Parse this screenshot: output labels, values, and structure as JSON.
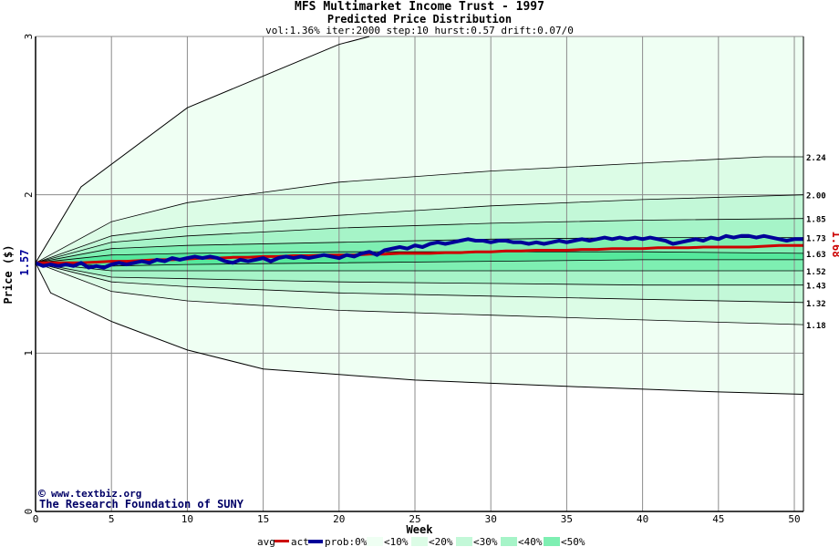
{
  "chart_data": {
    "type": "area",
    "title": "MFS Multimarket Income Trust - 1997",
    "subtitle": "Predicted Price Distribution",
    "params": "vol:1.36% iter:2000 step:10 hurst:0.57 drift:0.07/0",
    "xlabel": "Week",
    "ylabel": "Price ($)",
    "xlim": [
      0,
      50.6
    ],
    "ylim": [
      0,
      3
    ],
    "x_ticks": [
      "0",
      "5",
      "10",
      "15",
      "20",
      "25",
      "30",
      "35",
      "40",
      "45",
      "50"
    ],
    "y_ticks": [
      "0",
      "1",
      "2",
      "3"
    ],
    "start_price_label": "1.57",
    "end_price_label": "1.68",
    "band_end_labels": [
      "2.24",
      "2.00",
      "1.85",
      "1.73",
      "1.63",
      "1.52",
      "1.43",
      "1.32",
      "1.18"
    ],
    "credit_line1": "www.textbiz.org",
    "credit_line2": "The Research Foundation of SUNY",
    "legend": {
      "avg": "avg",
      "act": "act",
      "prob": "prob:0%<",
      "b10": "<10%",
      "b20": "<20%",
      "b30": "<30%",
      "b40": "<40%",
      "b50": "<50%"
    },
    "band_colors": [
      "#effff3",
      "#dcfce6",
      "#c3f8d8",
      "#a6f4c8",
      "#7eefb2",
      "#55e89c"
    ],
    "avg_color": "#cc0000",
    "act_color": "#000099",
    "envelope_upper": [
      [
        0,
        1.57
      ],
      [
        3,
        2.05
      ],
      [
        10,
        2.55
      ],
      [
        15,
        2.75
      ],
      [
        20,
        2.95
      ],
      [
        22,
        3.0
      ]
    ],
    "envelope_lower": [
      [
        0,
        1.57
      ],
      [
        1,
        1.38
      ],
      [
        5,
        1.2
      ],
      [
        10,
        1.02
      ],
      [
        15,
        0.9
      ],
      [
        25,
        0.83
      ],
      [
        35,
        0.79
      ],
      [
        45,
        0.755
      ],
      [
        50.6,
        0.74
      ]
    ],
    "bands": [
      {
        "upper": [
          [
            0,
            1.57
          ],
          [
            5,
            1.83
          ],
          [
            10,
            1.95
          ],
          [
            20,
            2.08
          ],
          [
            30,
            2.15
          ],
          [
            40,
            2.2
          ],
          [
            48,
            2.24
          ],
          [
            50.6,
            2.24
          ]
        ],
        "lower": [
          [
            0,
            1.57
          ],
          [
            5,
            1.39
          ],
          [
            10,
            1.33
          ],
          [
            20,
            1.27
          ],
          [
            30,
            1.24
          ],
          [
            40,
            1.21
          ],
          [
            50.6,
            1.18
          ]
        ]
      },
      {
        "upper": [
          [
            0,
            1.57
          ],
          [
            5,
            1.74
          ],
          [
            10,
            1.8
          ],
          [
            20,
            1.87
          ],
          [
            30,
            1.93
          ],
          [
            40,
            1.97
          ],
          [
            50.6,
            2.0
          ]
        ],
        "lower": [
          [
            0,
            1.57
          ],
          [
            5,
            1.45
          ],
          [
            10,
            1.42
          ],
          [
            20,
            1.38
          ],
          [
            30,
            1.36
          ],
          [
            40,
            1.34
          ],
          [
            50.6,
            1.32
          ]
        ]
      },
      {
        "upper": [
          [
            0,
            1.57
          ],
          [
            5,
            1.7
          ],
          [
            10,
            1.74
          ],
          [
            20,
            1.79
          ],
          [
            30,
            1.82
          ],
          [
            40,
            1.84
          ],
          [
            50.6,
            1.85
          ]
        ],
        "lower": [
          [
            0,
            1.57
          ],
          [
            5,
            1.48
          ],
          [
            10,
            1.47
          ],
          [
            20,
            1.45
          ],
          [
            30,
            1.44
          ],
          [
            40,
            1.43
          ],
          [
            50.6,
            1.43
          ]
        ]
      },
      {
        "upper": [
          [
            0,
            1.57
          ],
          [
            5,
            1.66
          ],
          [
            10,
            1.68
          ],
          [
            20,
            1.7
          ],
          [
            30,
            1.72
          ],
          [
            40,
            1.73
          ],
          [
            50.6,
            1.73
          ]
        ],
        "lower": [
          [
            0,
            1.57
          ],
          [
            5,
            1.52
          ],
          [
            10,
            1.52
          ],
          [
            20,
            1.52
          ],
          [
            30,
            1.52
          ],
          [
            40,
            1.52
          ],
          [
            50.6,
            1.52
          ]
        ]
      },
      {
        "upper": [
          [
            0,
            1.57
          ],
          [
            5,
            1.62
          ],
          [
            10,
            1.63
          ],
          [
            20,
            1.64
          ],
          [
            30,
            1.64
          ],
          [
            40,
            1.64
          ],
          [
            50.6,
            1.63
          ]
        ],
        "lower": [
          [
            0,
            1.57
          ],
          [
            5,
            1.55
          ],
          [
            10,
            1.56
          ],
          [
            20,
            1.57
          ],
          [
            30,
            1.58
          ],
          [
            40,
            1.59
          ],
          [
            50.6,
            1.59
          ]
        ]
      }
    ],
    "avg_series": [
      [
        0,
        1.57
      ],
      [
        1,
        1.57
      ],
      [
        2,
        1.57
      ],
      [
        3,
        1.57
      ],
      [
        4,
        1.575
      ],
      [
        5,
        1.58
      ],
      [
        6,
        1.58
      ],
      [
        7,
        1.585
      ],
      [
        8,
        1.59
      ],
      [
        9,
        1.59
      ],
      [
        10,
        1.595
      ],
      [
        11,
        1.6
      ],
      [
        12,
        1.6
      ],
      [
        13,
        1.605
      ],
      [
        14,
        1.605
      ],
      [
        15,
        1.61
      ],
      [
        16,
        1.61
      ],
      [
        17,
        1.615
      ],
      [
        18,
        1.615
      ],
      [
        19,
        1.62
      ],
      [
        20,
        1.62
      ],
      [
        21,
        1.62
      ],
      [
        22,
        1.625
      ],
      [
        23,
        1.625
      ],
      [
        24,
        1.63
      ],
      [
        25,
        1.63
      ],
      [
        26,
        1.63
      ],
      [
        27,
        1.635
      ],
      [
        28,
        1.635
      ],
      [
        29,
        1.64
      ],
      [
        30,
        1.64
      ],
      [
        31,
        1.645
      ],
      [
        32,
        1.645
      ],
      [
        33,
        1.65
      ],
      [
        34,
        1.65
      ],
      [
        35,
        1.65
      ],
      [
        36,
        1.655
      ],
      [
        37,
        1.655
      ],
      [
        38,
        1.66
      ],
      [
        39,
        1.66
      ],
      [
        40,
        1.66
      ],
      [
        41,
        1.665
      ],
      [
        42,
        1.665
      ],
      [
        43,
        1.665
      ],
      [
        44,
        1.67
      ],
      [
        45,
        1.67
      ],
      [
        46,
        1.67
      ],
      [
        47,
        1.67
      ],
      [
        48,
        1.675
      ],
      [
        49,
        1.68
      ],
      [
        50,
        1.68
      ],
      [
        50.6,
        1.68
      ]
    ],
    "act_series": [
      [
        0,
        1.57
      ],
      [
        0.5,
        1.55
      ],
      [
        1,
        1.56
      ],
      [
        1.5,
        1.55
      ],
      [
        2,
        1.56
      ],
      [
        2.5,
        1.55
      ],
      [
        3,
        1.57
      ],
      [
        3.5,
        1.54
      ],
      [
        4,
        1.55
      ],
      [
        4.5,
        1.54
      ],
      [
        5,
        1.56
      ],
      [
        5.5,
        1.57
      ],
      [
        6,
        1.56
      ],
      [
        6.5,
        1.57
      ],
      [
        7,
        1.58
      ],
      [
        7.5,
        1.57
      ],
      [
        8,
        1.59
      ],
      [
        8.5,
        1.58
      ],
      [
        9,
        1.6
      ],
      [
        9.5,
        1.59
      ],
      [
        10,
        1.6
      ],
      [
        10.5,
        1.61
      ],
      [
        11,
        1.6
      ],
      [
        11.5,
        1.61
      ],
      [
        12,
        1.6
      ],
      [
        12.5,
        1.58
      ],
      [
        13,
        1.57
      ],
      [
        13.5,
        1.59
      ],
      [
        14,
        1.58
      ],
      [
        14.5,
        1.59
      ],
      [
        15,
        1.6
      ],
      [
        15.5,
        1.58
      ],
      [
        16,
        1.6
      ],
      [
        16.5,
        1.61
      ],
      [
        17,
        1.6
      ],
      [
        17.5,
        1.61
      ],
      [
        18,
        1.6
      ],
      [
        18.5,
        1.61
      ],
      [
        19,
        1.62
      ],
      [
        19.5,
        1.61
      ],
      [
        20,
        1.6
      ],
      [
        20.5,
        1.62
      ],
      [
        21,
        1.61
      ],
      [
        21.5,
        1.63
      ],
      [
        22,
        1.64
      ],
      [
        22.5,
        1.62
      ],
      [
        23,
        1.65
      ],
      [
        23.5,
        1.66
      ],
      [
        24,
        1.67
      ],
      [
        24.5,
        1.66
      ],
      [
        25,
        1.68
      ],
      [
        25.5,
        1.67
      ],
      [
        26,
        1.69
      ],
      [
        26.5,
        1.7
      ],
      [
        27,
        1.69
      ],
      [
        27.5,
        1.7
      ],
      [
        28,
        1.71
      ],
      [
        28.5,
        1.72
      ],
      [
        29,
        1.71
      ],
      [
        29.5,
        1.71
      ],
      [
        30,
        1.7
      ],
      [
        30.5,
        1.71
      ],
      [
        31,
        1.71
      ],
      [
        31.5,
        1.7
      ],
      [
        32,
        1.7
      ],
      [
        32.5,
        1.69
      ],
      [
        33,
        1.7
      ],
      [
        33.5,
        1.69
      ],
      [
        34,
        1.7
      ],
      [
        34.5,
        1.71
      ],
      [
        35,
        1.7
      ],
      [
        35.5,
        1.71
      ],
      [
        36,
        1.72
      ],
      [
        36.5,
        1.71
      ],
      [
        37,
        1.72
      ],
      [
        37.5,
        1.73
      ],
      [
        38,
        1.72
      ],
      [
        38.5,
        1.73
      ],
      [
        39,
        1.72
      ],
      [
        39.5,
        1.73
      ],
      [
        40,
        1.72
      ],
      [
        40.5,
        1.73
      ],
      [
        41,
        1.72
      ],
      [
        41.5,
        1.71
      ],
      [
        42,
        1.69
      ],
      [
        42.5,
        1.7
      ],
      [
        43,
        1.71
      ],
      [
        43.5,
        1.72
      ],
      [
        44,
        1.71
      ],
      [
        44.5,
        1.73
      ],
      [
        45,
        1.72
      ],
      [
        45.5,
        1.74
      ],
      [
        46,
        1.73
      ],
      [
        46.5,
        1.74
      ],
      [
        47,
        1.74
      ],
      [
        47.5,
        1.73
      ],
      [
        48,
        1.74
      ],
      [
        48.5,
        1.73
      ],
      [
        49,
        1.72
      ],
      [
        49.5,
        1.71
      ],
      [
        50,
        1.72
      ],
      [
        50.6,
        1.72
      ]
    ]
  }
}
